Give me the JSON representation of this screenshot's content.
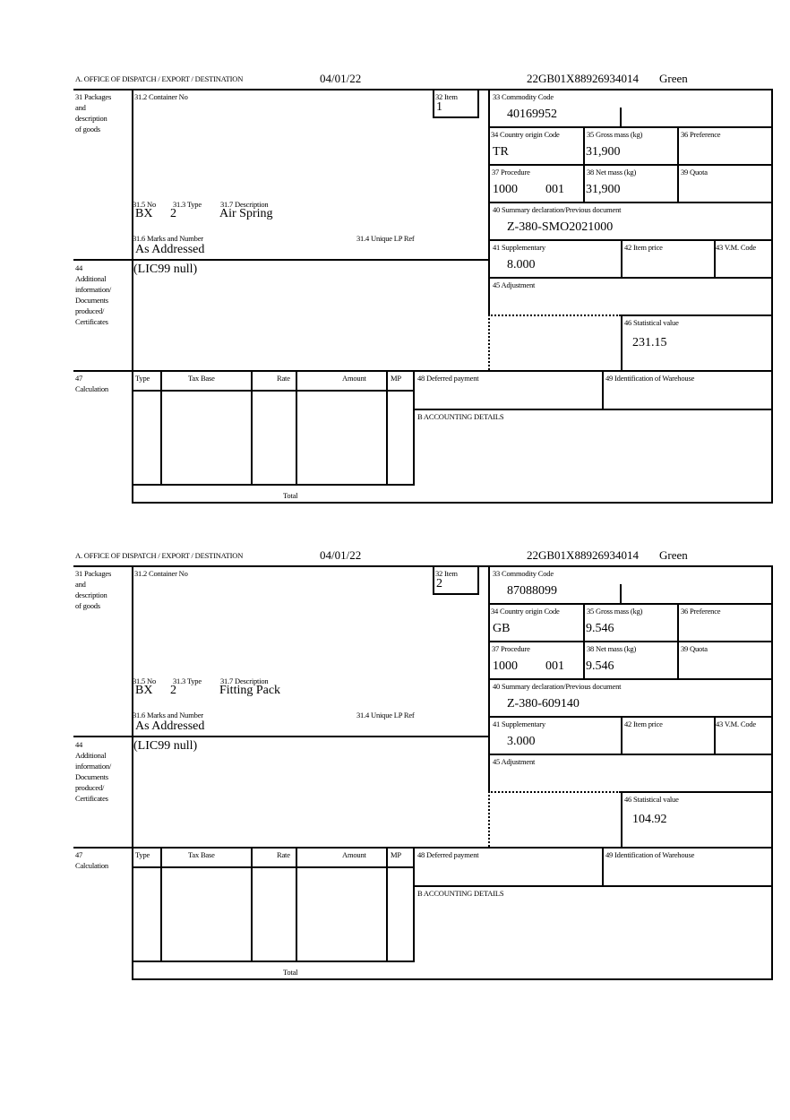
{
  "labels": {
    "office": "A.  OFFICE OF DISPATCH / EXPORT / DESTINATION",
    "packages": "31 Packages\nand\ndescription\nof goods",
    "container": "31.2 Container No",
    "item": "32 Item",
    "commodity": "33 Commodity Code",
    "origin": "34 Country origin Code",
    "gross": "35 Gross mass (kg)",
    "preference": "36 Preference",
    "procedure": "37 Procedure",
    "net": "38 Net mass (kg)",
    "quota": "39 Quota",
    "summary": "40 Summary declaration/Previous document",
    "supplementary": "41 Supplementary",
    "item_price": "42 Item price",
    "vm_code": "43 V.M. Code",
    "adjustment": "45 Adjustment",
    "statistical": "46 Statistical value",
    "no": "31.5 No",
    "type": "31.3 Type",
    "description": "31.7 Description",
    "marks": "31.6 Marks and Number",
    "lp_ref": "31.4 Unique LP Ref",
    "additional": "44\nAdditional\ninformation/\nDocuments\nproduced/\nCertificates",
    "calculation": "47\nCalculation",
    "calc_type": "Type",
    "calc_tax_base": "Tax Base",
    "calc_rate": "Rate",
    "calc_amount": "Amount",
    "calc_mp": "MP",
    "total": "Total",
    "deferred": "48 Deferred payment",
    "warehouse": "49 Identification of Warehouse",
    "accounting": "B ACCOUNTING DETAILS"
  },
  "forms": [
    {
      "date": "04/01/22",
      "reference": "22GB01X88926934014",
      "route": "Green",
      "item": "1",
      "commodity_code": "40169952",
      "origin_code": "TR",
      "gross_mass": "31,900",
      "procedure": "1000",
      "procedure_additional": "001",
      "net_mass": "31,900",
      "previous_document": "Z-380-SMO2021000",
      "supplementary": "8.000",
      "statistical_value": "231.15",
      "package_no": "BX",
      "package_type": "2",
      "description": "Air Spring",
      "marks": "As Addressed",
      "additional_info": "(LIC99 null)"
    },
    {
      "date": "04/01/22",
      "reference": "22GB01X88926934014",
      "route": "Green",
      "item": "2",
      "commodity_code": "87088099",
      "origin_code": "GB",
      "gross_mass": "9.546",
      "procedure": "1000",
      "procedure_additional": "001",
      "net_mass": "9.546",
      "previous_document": "Z-380-609140",
      "supplementary": "3.000",
      "statistical_value": "104.92",
      "package_no": "BX",
      "package_type": "2",
      "description": "Fitting Pack",
      "marks": "As Addressed",
      "additional_info": "(LIC99 null)"
    }
  ]
}
